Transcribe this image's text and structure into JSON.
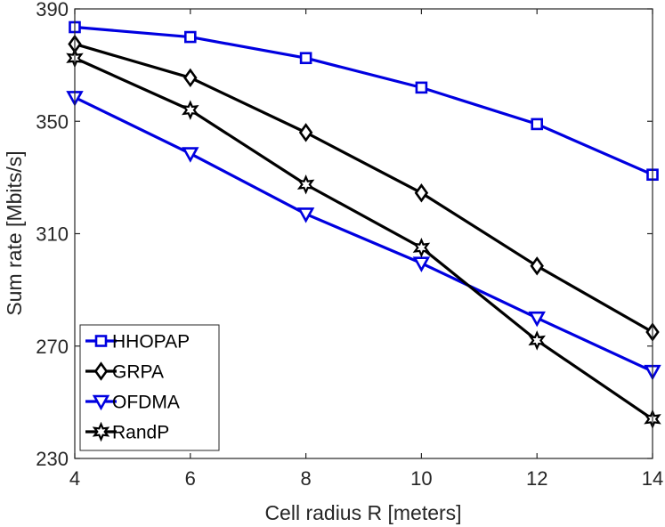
{
  "chart_data": {
    "type": "line",
    "xlabel": "Cell radius R [meters]",
    "ylabel": "Sum rate [Mbits/s]",
    "xlim": [
      4,
      14
    ],
    "ylim": [
      230,
      390
    ],
    "x_ticks": [
      4,
      6,
      8,
      10,
      12,
      14
    ],
    "y_ticks": [
      230,
      270,
      310,
      350,
      390
    ],
    "x": [
      4,
      6,
      8,
      10,
      12,
      14
    ],
    "grid": false,
    "legend_position": "bottom-left",
    "series": [
      {
        "name": "HHOPAP",
        "color": "#0000e0",
        "marker": "square",
        "values": [
          383.5,
          380,
          372.5,
          362,
          349,
          331
        ]
      },
      {
        "name": "GRPA",
        "color": "#000000",
        "marker": "diamond",
        "values": [
          377.5,
          365.5,
          346,
          324.5,
          298.5,
          275
        ]
      },
      {
        "name": "OFDMA",
        "color": "#0000e0",
        "marker": "triangle-down",
        "values": [
          358.5,
          338.5,
          317,
          299.5,
          280,
          261
        ]
      },
      {
        "name": "RandP",
        "color": "#000000",
        "marker": "hexagram",
        "values": [
          372.5,
          354,
          327.5,
          305,
          272,
          244
        ]
      }
    ]
  }
}
